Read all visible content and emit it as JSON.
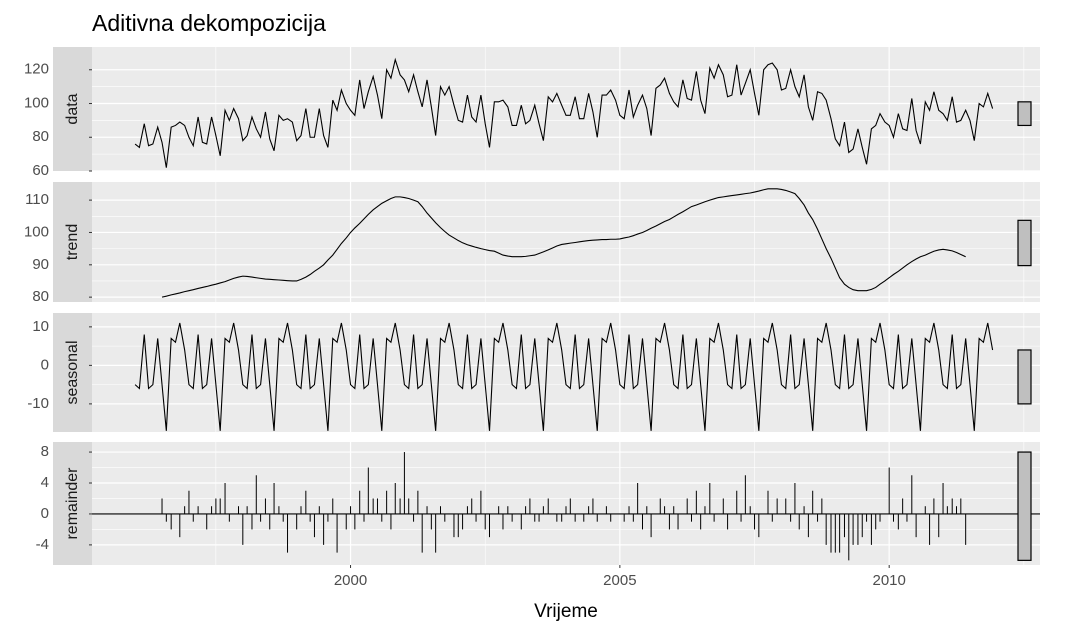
{
  "chart_data": {
    "title": "Aditivna dekompozicija",
    "x_label": "Vrijeme",
    "xlim": [
      1995.2,
      2012.8
    ],
    "xticks": [
      2000,
      2005,
      2010
    ],
    "x": [
      1996,
      1996.08,
      1996.17,
      1996.25,
      1996.33,
      1996.42,
      1996.5,
      1996.58,
      1996.67,
      1996.75,
      1996.83,
      1996.92,
      1997,
      1997.08,
      1997.17,
      1997.25,
      1997.33,
      1997.42,
      1997.5,
      1997.58,
      1997.67,
      1997.75,
      1997.83,
      1997.92,
      1998,
      1998.08,
      1998.17,
      1998.25,
      1998.33,
      1998.42,
      1998.5,
      1998.58,
      1998.67,
      1998.75,
      1998.83,
      1998.92,
      1999,
      1999.08,
      1999.17,
      1999.25,
      1999.33,
      1999.42,
      1999.5,
      1999.58,
      1999.67,
      1999.75,
      1999.83,
      1999.92,
      2000,
      2000.08,
      2000.17,
      2000.25,
      2000.33,
      2000.42,
      2000.5,
      2000.58,
      2000.67,
      2000.75,
      2000.83,
      2000.92,
      2001,
      2001.08,
      2001.17,
      2001.25,
      2001.33,
      2001.42,
      2001.5,
      2001.58,
      2001.67,
      2001.75,
      2001.83,
      2001.92,
      2002,
      2002.08,
      2002.17,
      2002.25,
      2002.33,
      2002.42,
      2002.5,
      2002.58,
      2002.67,
      2002.75,
      2002.83,
      2002.92,
      2003,
      2003.08,
      2003.17,
      2003.25,
      2003.33,
      2003.42,
      2003.5,
      2003.58,
      2003.67,
      2003.75,
      2003.83,
      2003.92,
      2004,
      2004.08,
      2004.17,
      2004.25,
      2004.33,
      2004.42,
      2004.5,
      2004.58,
      2004.67,
      2004.75,
      2004.83,
      2004.92,
      2005,
      2005.08,
      2005.17,
      2005.25,
      2005.33,
      2005.42,
      2005.5,
      2005.58,
      2005.67,
      2005.75,
      2005.83,
      2005.92,
      2006,
      2006.08,
      2006.17,
      2006.25,
      2006.33,
      2006.42,
      2006.5,
      2006.58,
      2006.67,
      2006.75,
      2006.83,
      2006.92,
      2007,
      2007.08,
      2007.17,
      2007.25,
      2007.33,
      2007.42,
      2007.5,
      2007.58,
      2007.67,
      2007.75,
      2007.83,
      2007.92,
      2008,
      2008.08,
      2008.17,
      2008.25,
      2008.33,
      2008.42,
      2008.5,
      2008.58,
      2008.67,
      2008.75,
      2008.83,
      2008.92,
      2009,
      2009.08,
      2009.17,
      2009.25,
      2009.33,
      2009.42,
      2009.5,
      2009.58,
      2009.67,
      2009.75,
      2009.83,
      2009.92,
      2010,
      2010.08,
      2010.17,
      2010.25,
      2010.33,
      2010.42,
      2010.5,
      2010.58,
      2010.67,
      2010.75,
      2010.83,
      2010.92,
      2011,
      2011.08,
      2011.17,
      2011.25,
      2011.33,
      2011.42,
      2011.5,
      2011.58,
      2011.67,
      2011.75,
      2011.83,
      2011.92
    ],
    "panels": [
      {
        "type": "line",
        "strip": "data",
        "ylim": [
          60,
          133.5
        ],
        "yticks": [
          60,
          80,
          100,
          120
        ],
        "values": [
          76,
          74,
          88,
          75,
          76,
          86,
          77,
          62,
          86,
          87,
          89,
          87,
          80,
          75,
          92,
          77,
          76,
          92,
          81,
          69,
          96,
          90,
          97,
          91,
          78,
          81,
          92,
          85,
          80,
          95,
          79,
          72,
          93,
          90,
          91,
          89,
          78,
          81,
          97,
          80,
          80,
          97,
          81,
          74,
          102,
          96,
          108,
          100,
          96,
          93,
          114,
          97,
          107,
          116,
          105,
          91,
          120,
          115,
          126,
          117,
          114,
          107,
          117,
          107,
          98,
          114,
          98,
          81,
          110,
          105,
          110,
          99,
          90,
          89,
          105,
          92,
          89,
          105,
          88,
          74,
          101,
          101,
          102,
          98,
          87,
          87,
          99,
          88,
          90,
          99,
          88,
          78,
          104,
          101,
          106,
          99,
          93,
          93,
          104,
          91,
          91,
          106,
          95,
          80,
          105,
          105,
          108,
          102,
          93,
          91,
          108,
          92,
          99,
          105,
          97,
          81,
          109,
          111,
          115,
          106,
          101,
          98,
          114,
          103,
          102,
          119,
          102,
          94,
          121,
          115,
          123,
          117,
          104,
          105,
          123,
          105,
          112,
          120,
          106,
          93,
          120,
          123,
          124,
          120,
          108,
          109,
          120,
          110,
          104,
          117,
          98,
          90,
          107,
          106,
          102,
          91,
          79,
          75,
          89,
          71,
          73,
          85,
          74,
          64,
          85,
          87,
          94,
          89,
          87,
          80,
          94,
          85,
          84,
          103,
          84,
          76,
          101,
          96,
          107,
          96,
          94,
          90,
          104,
          89,
          90,
          96,
          90,
          78,
          100,
          98,
          106,
          97
        ]
      },
      {
        "type": "line",
        "strip": "trend",
        "ylim": [
          78.5,
          115.6
        ],
        "yticks": [
          80,
          90,
          100,
          110
        ],
        "values": [
          null,
          null,
          null,
          null,
          null,
          null,
          80,
          80.3,
          80.7,
          81,
          81.3,
          81.7,
          82,
          82.3,
          82.7,
          83,
          83.3,
          83.7,
          84,
          84.4,
          84.8,
          85.3,
          85.8,
          86.2,
          86.5,
          86.4,
          86.2,
          86,
          85.8,
          85.6,
          85.5,
          85.4,
          85.3,
          85.2,
          85.1,
          85,
          85,
          85.5,
          86.2,
          87,
          88,
          89,
          90,
          91.5,
          93,
          94.8,
          96.6,
          98.3,
          100,
          101.4,
          102.8,
          104.2,
          105.6,
          107,
          108,
          109,
          109.8,
          110.5,
          111,
          111,
          110.8,
          110.5,
          110,
          109.5,
          108,
          106,
          104.5,
          103,
          101.5,
          100.3,
          99.2,
          98.3,
          97.5,
          96.8,
          96.2,
          95.8,
          95.4,
          95,
          94.7,
          94.4,
          94.2,
          93.6,
          93,
          92.7,
          92.5,
          92.5,
          92.5,
          92.6,
          92.8,
          93,
          93.5,
          94,
          94.6,
          95.2,
          95.8,
          96.3,
          96.5,
          96.7,
          96.9,
          97.1,
          97.3,
          97.5,
          97.6,
          97.7,
          97.8,
          97.8,
          97.9,
          97.9,
          98,
          98.3,
          98.6,
          99,
          99.5,
          100,
          100.6,
          101.3,
          102,
          102.7,
          103.4,
          104,
          104.8,
          105.6,
          106.4,
          107.2,
          108,
          108.5,
          109,
          109.5,
          110,
          110.4,
          110.8,
          111,
          111.2,
          111.4,
          111.6,
          111.8,
          112,
          112.2,
          112.5,
          112.8,
          113.2,
          113.5,
          113.5,
          113.5,
          113.3,
          113,
          112.5,
          112,
          110.5,
          108.5,
          106,
          104,
          101,
          98,
          95,
          92,
          89,
          86,
          84,
          83,
          82.3,
          82,
          82,
          82,
          82.4,
          83,
          84,
          85,
          86,
          87,
          88,
          89,
          90,
          91,
          91.8,
          92.5,
          93,
          93.6,
          94.2,
          94.6,
          94.8,
          94.6,
          94.3,
          93.8,
          93.2,
          92.5,
          null,
          null,
          null,
          null,
          null,
          null
        ]
      },
      {
        "type": "line",
        "strip": "seasonal",
        "ylim": [
          -17.3,
          13.6
        ],
        "yticks": [
          -10,
          0,
          10
        ],
        "values": [
          -5,
          -6,
          8,
          -6,
          -5,
          7,
          -5,
          -17,
          7,
          6,
          11,
          4,
          -5,
          -6,
          8,
          -6,
          -5,
          7,
          -5,
          -17,
          7,
          6,
          11,
          4,
          -5,
          -6,
          8,
          -6,
          -5,
          7,
          -5,
          -17,
          7,
          6,
          11,
          4,
          -5,
          -6,
          8,
          -6,
          -5,
          7,
          -5,
          -17,
          7,
          6,
          11,
          4,
          -5,
          -6,
          8,
          -6,
          -5,
          7,
          -5,
          -17,
          7,
          6,
          11,
          4,
          -5,
          -6,
          8,
          -6,
          -5,
          7,
          -5,
          -17,
          7,
          6,
          11,
          4,
          -5,
          -6,
          8,
          -6,
          -5,
          7,
          -5,
          -17,
          7,
          6,
          11,
          4,
          -5,
          -6,
          8,
          -6,
          -5,
          7,
          -5,
          -17,
          7,
          6,
          11,
          4,
          -5,
          -6,
          8,
          -6,
          -5,
          7,
          -5,
          -17,
          7,
          6,
          11,
          4,
          -5,
          -6,
          8,
          -6,
          -5,
          7,
          -5,
          -17,
          7,
          6,
          11,
          4,
          -5,
          -6,
          8,
          -6,
          -5,
          7,
          -5,
          -17,
          7,
          6,
          11,
          4,
          -5,
          -6,
          8,
          -6,
          -5,
          7,
          -5,
          -17,
          7,
          6,
          11,
          4,
          -5,
          -6,
          8,
          -6,
          -5,
          7,
          -5,
          -17,
          7,
          6,
          11,
          4,
          -5,
          -6,
          8,
          -6,
          -5,
          7,
          -5,
          -17,
          7,
          6,
          11,
          4,
          -5,
          -6,
          8,
          -6,
          -5,
          7,
          -5,
          -17,
          7,
          6,
          11,
          4,
          -5,
          -6,
          8,
          -6,
          -5,
          7,
          -5,
          -17,
          7,
          6,
          11,
          4
        ]
      },
      {
        "type": "bar",
        "strip": "remainder",
        "ylim": [
          -6.6,
          9.3
        ],
        "yticks": [
          -4,
          0,
          4,
          8
        ],
        "values": [
          null,
          null,
          null,
          null,
          null,
          null,
          2,
          -1,
          -2,
          0,
          -3,
          1,
          3,
          -1,
          1,
          0,
          -2,
          1,
          2,
          2,
          4,
          -1,
          0,
          1,
          -4,
          1,
          -2,
          5,
          -1,
          2,
          -2,
          4,
          1,
          -1,
          -5,
          0,
          -2,
          1,
          3,
          -1,
          -3,
          1,
          -4,
          -1,
          2,
          -5,
          0,
          -2,
          1,
          -2,
          3,
          -1,
          6,
          2,
          2,
          -1,
          3,
          -2,
          4,
          2,
          8,
          2,
          -1,
          3,
          -5,
          1,
          -2,
          -5,
          1,
          -1,
          0,
          -3,
          -3,
          -2,
          1,
          2,
          -1,
          3,
          -2,
          -3,
          0,
          1,
          -2,
          1,
          -1,
          0,
          -2,
          1,
          2,
          -1,
          -1,
          1,
          2,
          0,
          -1,
          -1,
          1,
          2,
          -1,
          0,
          -1,
          1,
          2,
          -1,
          0,
          1,
          -1,
          0,
          0,
          -1,
          1,
          -1,
          4,
          -2,
          1,
          -3,
          0,
          2,
          1,
          -2,
          1,
          -2,
          0,
          2,
          -1,
          3,
          -2,
          1,
          4,
          -1,
          0,
          2,
          -2,
          0,
          3,
          -1,
          5,
          1,
          -2,
          -3,
          0,
          3,
          -1,
          2,
          0,
          2,
          -1,
          4,
          -2,
          1,
          -3,
          3,
          -1,
          2,
          -4,
          -5,
          -5,
          -5,
          -3,
          -6,
          -4,
          -4,
          -3,
          -1,
          -4,
          -2,
          -1,
          0,
          6,
          -1,
          -2,
          2,
          -1,
          5,
          -3,
          0,
          1,
          -4,
          2,
          -3,
          4,
          1,
          2,
          1,
          2,
          -4,
          null,
          null,
          null,
          null,
          null,
          null
        ]
      }
    ]
  }
}
